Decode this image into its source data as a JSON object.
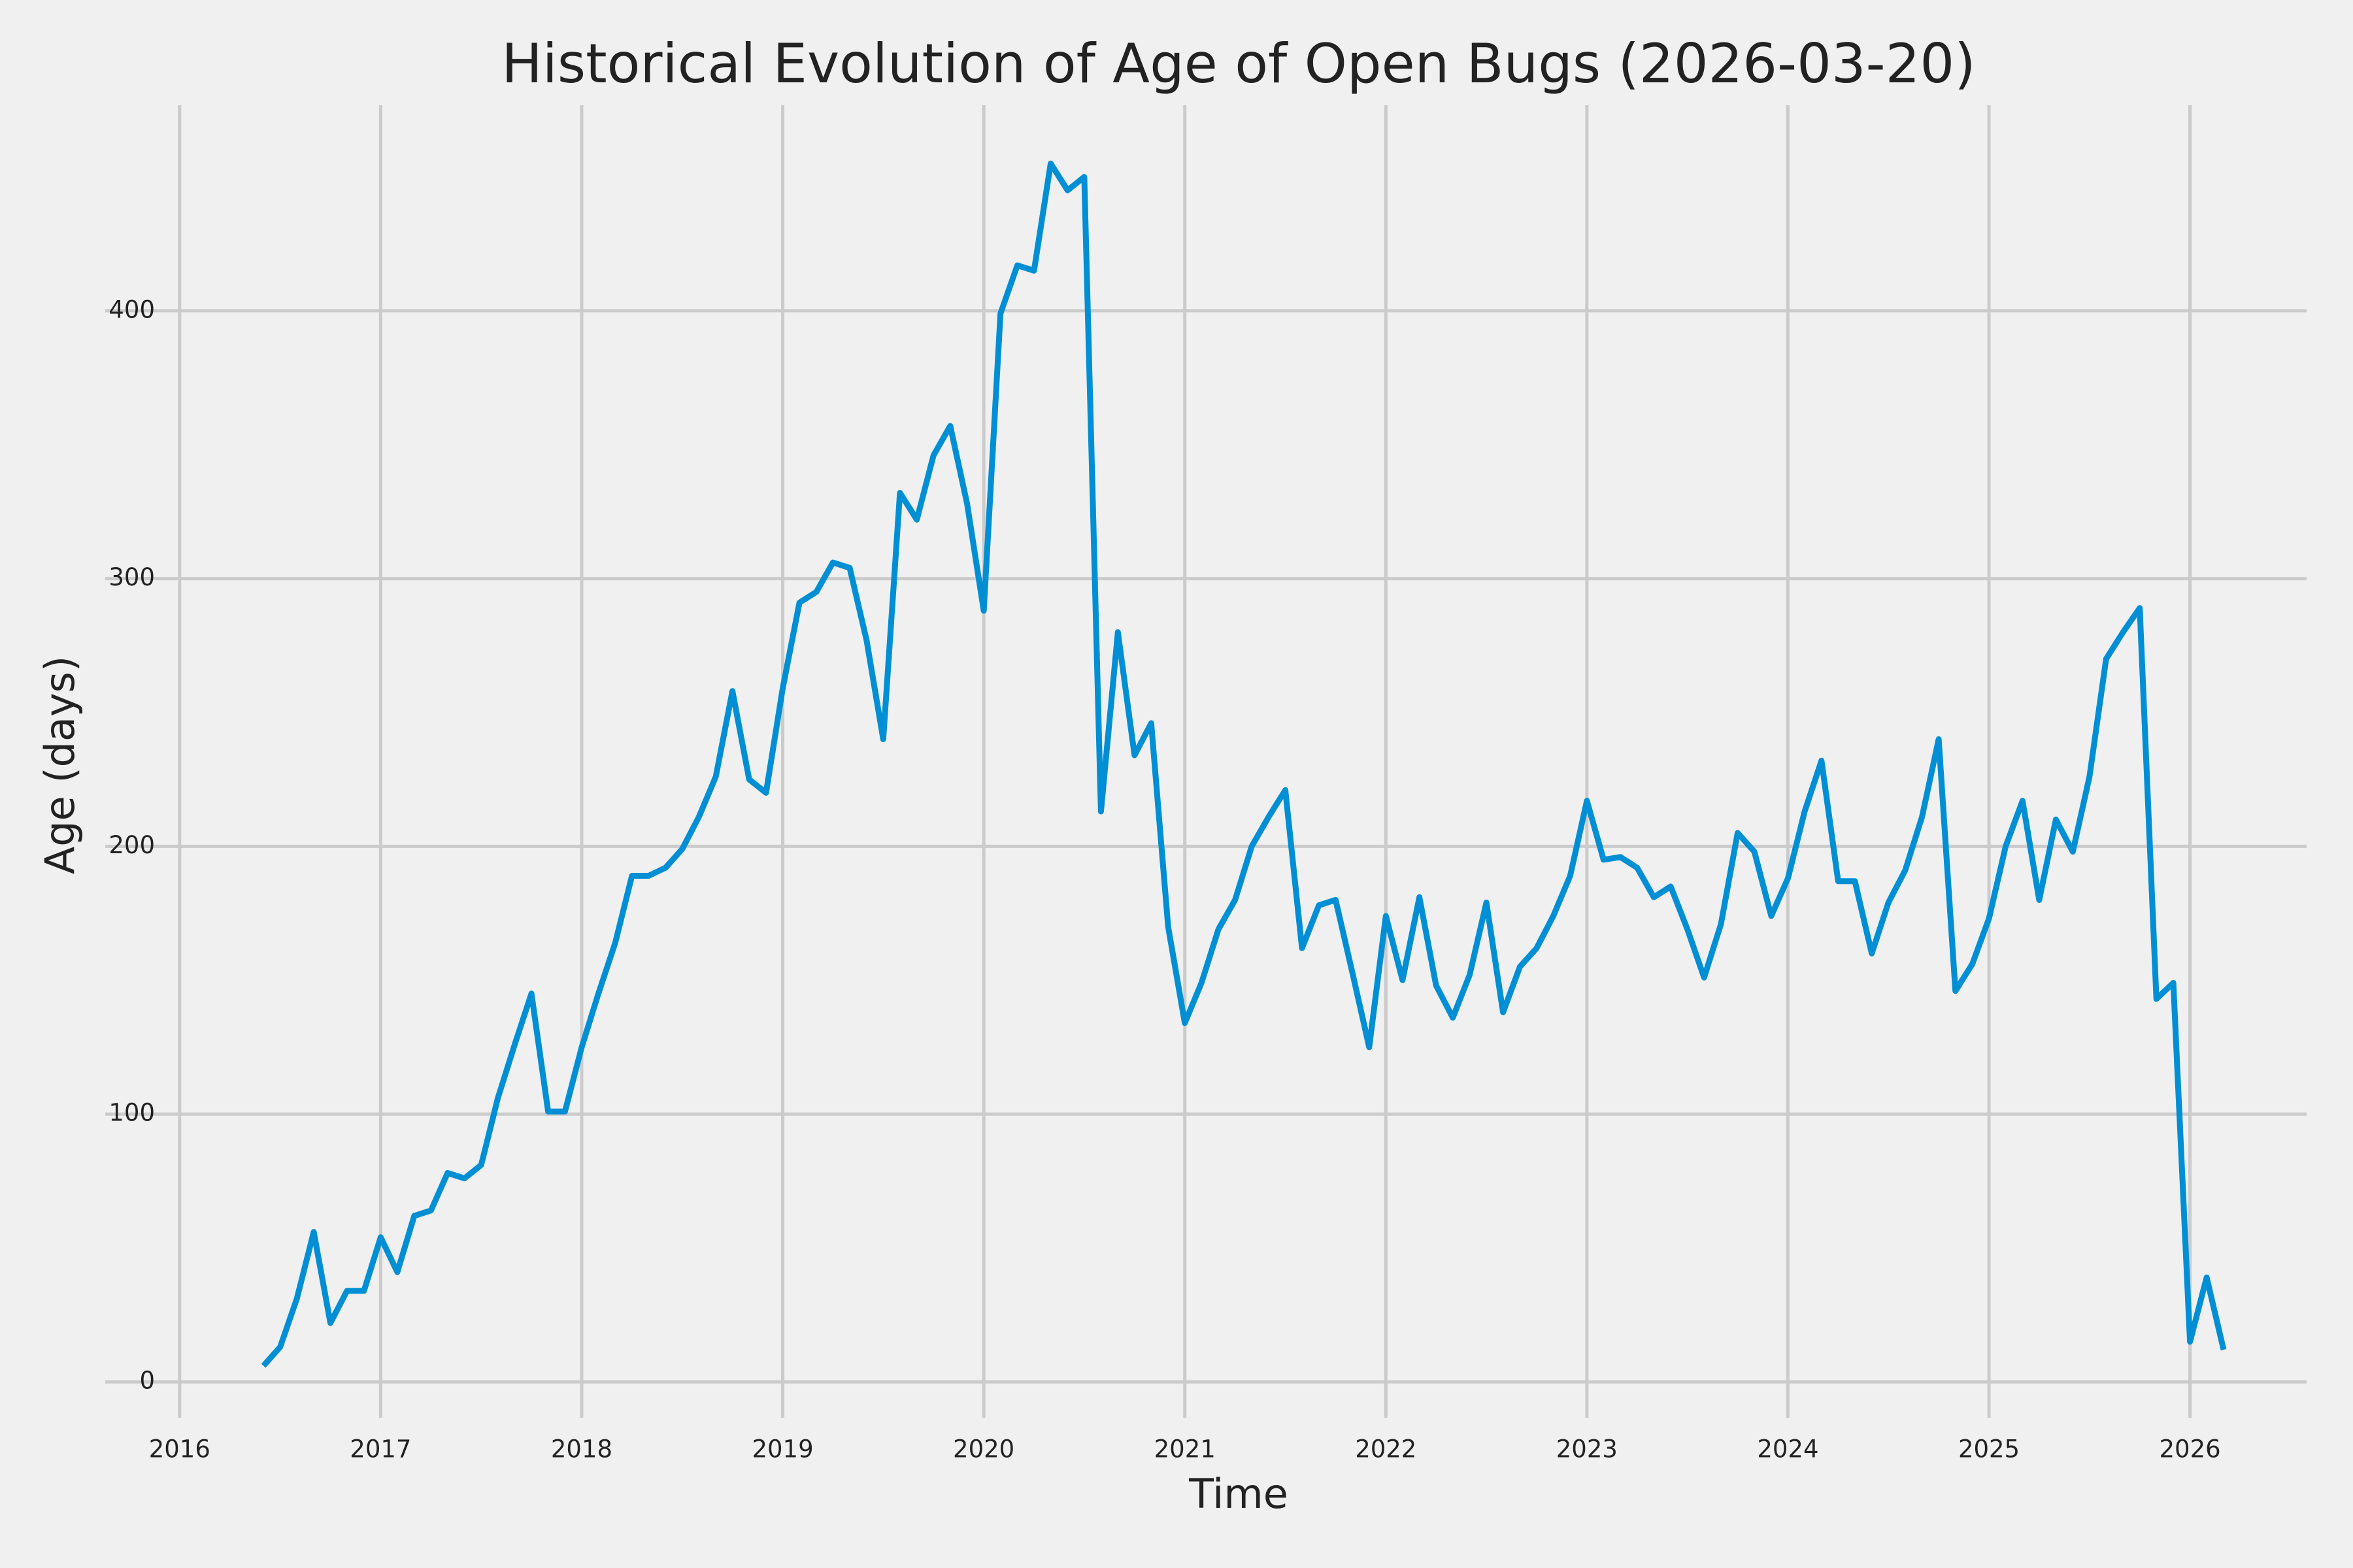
{
  "chart_data": {
    "type": "line",
    "title": "Historical Evolution of Age of Open Bugs (2026-03-20)",
    "x_label": "Time",
    "y_label": "Age (days)",
    "x": [
      2016.417,
      2016.5,
      2016.583,
      2016.667,
      2016.75,
      2016.833,
      2016.917,
      2017,
      2017.083,
      2017.167,
      2017.25,
      2017.333,
      2017.417,
      2017.5,
      2017.583,
      2017.667,
      2017.75,
      2017.833,
      2017.917,
      2018,
      2018.083,
      2018.167,
      2018.25,
      2018.333,
      2018.417,
      2018.5,
      2018.583,
      2018.667,
      2018.75,
      2018.833,
      2018.917,
      2019,
      2019.083,
      2019.167,
      2019.25,
      2019.333,
      2019.417,
      2019.5,
      2019.583,
      2019.667,
      2019.75,
      2019.833,
      2019.917,
      2020,
      2020.083,
      2020.167,
      2020.25,
      2020.333,
      2020.417,
      2020.5,
      2020.583,
      2020.667,
      2020.75,
      2020.833,
      2020.917,
      2021,
      2021.083,
      2021.167,
      2021.25,
      2021.333,
      2021.417,
      2021.5,
      2021.583,
      2021.667,
      2021.75,
      2021.833,
      2021.917,
      2022,
      2022.083,
      2022.167,
      2022.25,
      2022.333,
      2022.417,
      2022.5,
      2022.583,
      2022.667,
      2022.75,
      2022.833,
      2022.917,
      2023,
      2023.083,
      2023.167,
      2023.25,
      2023.333,
      2023.417,
      2023.5,
      2023.583,
      2023.667,
      2023.75,
      2023.833,
      2023.917,
      2024,
      2024.083,
      2024.167,
      2024.25,
      2024.333,
      2024.417,
      2024.5,
      2024.583,
      2024.667,
      2024.75,
      2024.833,
      2024.917,
      2025,
      2025.083,
      2025.167,
      2025.25,
      2025.333,
      2025.417,
      2025.5,
      2025.583,
      2025.667,
      2025.75,
      2025.833,
      2025.917,
      2026,
      2026.083,
      2026.167
    ],
    "series": [
      {
        "color": "#008fd5",
        "values": [
          6,
          13,
          31,
          56,
          22,
          34,
          34,
          54,
          41,
          62,
          64,
          78,
          76,
          81,
          106,
          126,
          145,
          101,
          101,
          125,
          145,
          164,
          189,
          189,
          192,
          199,
          211,
          226,
          258,
          225,
          220,
          259,
          291,
          295,
          306,
          304,
          277,
          240,
          332,
          322,
          346,
          357,
          328,
          288,
          399,
          417,
          415,
          455,
          445,
          450,
          213,
          280,
          234,
          246,
          170,
          134,
          149,
          169,
          180,
          200,
          211,
          221,
          162,
          178,
          180,
          153,
          125,
          174,
          150,
          181,
          148,
          136,
          152,
          179,
          138,
          155,
          162,
          174,
          189,
          217,
          195,
          196,
          192,
          181,
          185,
          169,
          151,
          171,
          205,
          198,
          174,
          188,
          213,
          232,
          187,
          187,
          160,
          179,
          191,
          211,
          240,
          146,
          156,
          173,
          200,
          217,
          180,
          210,
          198,
          226,
          270,
          280,
          289,
          143,
          149,
          15,
          39,
          12
        ]
      }
    ],
    "xlim": [
      2015.63,
      2026.58
    ],
    "xticks": [
      2016,
      2017,
      2018,
      2019,
      2020,
      2021,
      2022,
      2023,
      2024,
      2025,
      2026
    ],
    "ylim": [
      -13.4,
      476.8
    ],
    "yticks": [
      0,
      100,
      200,
      300,
      400
    ],
    "grid": true
  }
}
